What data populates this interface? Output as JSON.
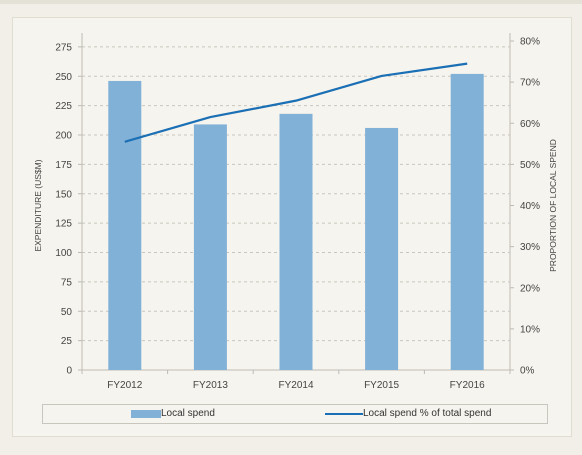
{
  "chart_data": {
    "type": "bar",
    "categories": [
      "FY2012",
      "FY2013",
      "FY2014",
      "FY2015",
      "FY2016"
    ],
    "series": [
      {
        "name": "Local spend",
        "type": "bar",
        "axis": "left",
        "values": [
          246,
          209,
          218,
          206,
          252
        ],
        "color": "#82b1d7"
      },
      {
        "name": "Local spend % of total spend",
        "type": "line",
        "axis": "right",
        "values": [
          55.5,
          61.5,
          65.5,
          71.5,
          74.5
        ],
        "color": "#1a6fb5"
      }
    ],
    "xlabel": "",
    "ylabel": "EXPENDITURE (US$M)",
    "ylabel_right": "PROPORTION OF LOCAL SPEND",
    "ylim": [
      0,
      280
    ],
    "ylim_right": [
      0,
      0.8
    ],
    "yticks": [
      "0",
      "25",
      "50",
      "75",
      "100",
      "125",
      "150",
      "175",
      "200",
      "225",
      "250",
      "275"
    ],
    "yticks_right": [
      "0%",
      "10%",
      "20%",
      "30%",
      "40%",
      "50%",
      "60%",
      "70%",
      "80%"
    ],
    "grid": "dashed horizontal",
    "legend_position": "bottom"
  },
  "legend": {
    "bar_label": "Local spend",
    "line_label": "Local spend % of total spend"
  }
}
